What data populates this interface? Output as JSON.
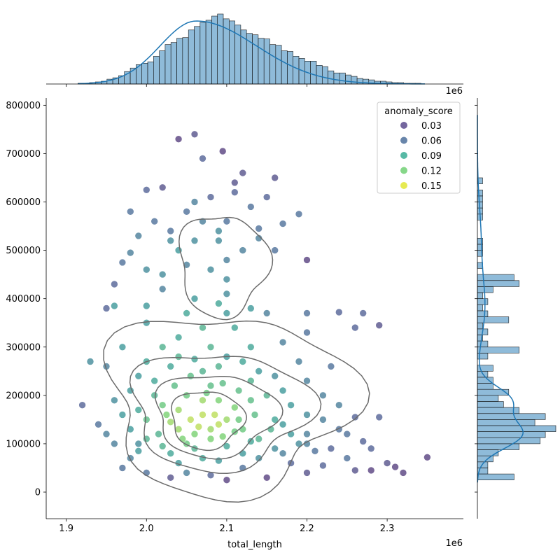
{
  "chart_data": {
    "type": "scatter",
    "subtype": "jointplot",
    "xlabel": "total_length",
    "ylabel": "",
    "x_offset_label": "1e6",
    "top_hist_offset_label": "1e6",
    "xlim": [
      1.875,
      2.395
    ],
    "ylim": [
      -55000,
      815000
    ],
    "x_ticks": [
      1.9,
      2.0,
      2.1,
      2.2,
      2.3
    ],
    "x_tick_labels": [
      "1.9",
      "2.0",
      "2.1",
      "2.2",
      "2.3"
    ],
    "y_ticks": [
      0,
      100000,
      200000,
      300000,
      400000,
      500000,
      600000,
      700000,
      800000
    ],
    "y_tick_labels": [
      "0",
      "100000",
      "200000",
      "300000",
      "400000",
      "500000",
      "600000",
      "700000",
      "800000"
    ],
    "legend": {
      "title": "anomaly_score",
      "position": "top-right",
      "entries": [
        {
          "label": "0.03",
          "color": "#46337e"
        },
        {
          "label": "0.06",
          "color": "#365c8d"
        },
        {
          "label": "0.09",
          "color": "#1fa187"
        },
        {
          "label": "0.12",
          "color": "#5ec962"
        },
        {
          "label": "0.15",
          "color": "#dde318"
        }
      ]
    },
    "colormap": [
      "#440154",
      "#3b528b",
      "#21918c",
      "#5ec962",
      "#fde725"
    ],
    "score_range": [
      0.0,
      0.17
    ],
    "kde_color": "#1f77b4",
    "hist_color": "#1f77b4",
    "contour_color": "#6b6b6b",
    "top_marginal_hist": {
      "bin_start": 1.9,
      "bin_width": 0.00725,
      "counts": [
        0,
        0,
        1,
        1,
        2,
        3,
        4,
        7,
        9,
        12,
        18,
        23,
        28,
        30,
        32,
        40,
        48,
        57,
        60,
        66,
        67,
        78,
        83,
        89,
        92,
        98,
        101,
        94,
        91,
        85,
        78,
        73,
        71,
        66,
        65,
        57,
        56,
        48,
        47,
        40,
        37,
        33,
        33,
        27,
        25,
        19,
        16,
        16,
        13,
        11,
        8,
        7,
        6,
        4,
        4,
        3,
        2,
        2,
        1,
        1,
        1,
        0,
        0,
        0,
        0
      ],
      "kde_peak_x": 2.062
    },
    "right_marginal_hist": {
      "bins_y_start": 25000,
      "bin_height": 12500,
      "counts": [
        7,
        2,
        2,
        3,
        4,
        8,
        12,
        13,
        15,
        11,
        13,
        8,
        5,
        4,
        6,
        3,
        3,
        2,
        3,
        0,
        2,
        8,
        2,
        1,
        2,
        1,
        6,
        2,
        1,
        2,
        1,
        3,
        8,
        7,
        0,
        1,
        0,
        1,
        1,
        1,
        0,
        0,
        0,
        1,
        1,
        1,
        1,
        1,
        0,
        1
      ],
      "kde_peaks": [
        120000,
        190000
      ]
    },
    "scatter_points": [
      [
        2.055,
        150000,
        0.15
      ],
      [
        2.07,
        160000,
        0.15
      ],
      [
        2.09,
        140000,
        0.15
      ],
      [
        2.04,
        170000,
        0.14
      ],
      [
        2.08,
        130000,
        0.14
      ],
      [
        2.11,
        175000,
        0.13
      ],
      [
        2.03,
        145000,
        0.14
      ],
      [
        2.06,
        120000,
        0.13
      ],
      [
        2.1,
        150000,
        0.14
      ],
      [
        2.12,
        130000,
        0.12
      ],
      [
        2.05,
        200000,
        0.12
      ],
      [
        2.02,
        180000,
        0.12
      ],
      [
        2.13,
        190000,
        0.11
      ],
      [
        2.0,
        150000,
        0.11
      ],
      [
        2.08,
        220000,
        0.11
      ],
      [
        2.015,
        120000,
        0.1
      ],
      [
        2.14,
        110000,
        0.1
      ],
      [
        2.16,
        150000,
        0.09
      ],
      [
        1.99,
        170000,
        0.09
      ],
      [
        2.07,
        250000,
        0.1
      ],
      [
        2.03,
        260000,
        0.09
      ],
      [
        2.1,
        280000,
        0.08
      ],
      [
        2.18,
        120000,
        0.08
      ],
      [
        1.98,
        130000,
        0.08
      ],
      [
        2.2,
        100000,
        0.06
      ],
      [
        2.22,
        150000,
        0.06
      ],
      [
        2.25,
        120000,
        0.05
      ],
      [
        2.28,
        90000,
        0.04
      ],
      [
        2.3,
        60000,
        0.03
      ],
      [
        2.35,
        72000,
        0.02
      ],
      [
        2.32,
        40000,
        0.02
      ],
      [
        1.97,
        50000,
        0.05
      ],
      [
        2.05,
        40000,
        0.06
      ],
      [
        2.12,
        50000,
        0.05
      ],
      [
        2.18,
        60000,
        0.04
      ],
      [
        2.25,
        70000,
        0.05
      ],
      [
        1.96,
        100000,
        0.06
      ],
      [
        1.94,
        140000,
        0.05
      ],
      [
        1.92,
        180000,
        0.04
      ],
      [
        2.06,
        740000,
        0.03
      ],
      [
        2.04,
        730000,
        0.02
      ],
      [
        2.095,
        705000,
        0.02
      ],
      [
        2.07,
        690000,
        0.04
      ],
      [
        2.12,
        660000,
        0.03
      ],
      [
        2.16,
        650000,
        0.03
      ],
      [
        2.02,
        630000,
        0.03
      ],
      [
        2.0,
        625000,
        0.04
      ],
      [
        1.98,
        580000,
        0.05
      ],
      [
        2.03,
        540000,
        0.05
      ],
      [
        2.09,
        520000,
        0.07
      ],
      [
        2.14,
        525000,
        0.06
      ],
      [
        2.2,
        480000,
        0.02
      ],
      [
        2.16,
        500000,
        0.05
      ],
      [
        2.04,
        500000,
        0.08
      ],
      [
        2.08,
        460000,
        0.07
      ],
      [
        2.1,
        440000,
        0.07
      ],
      [
        2.02,
        420000,
        0.06
      ],
      [
        1.97,
        475000,
        0.05
      ],
      [
        1.96,
        430000,
        0.04
      ],
      [
        1.95,
        380000,
        0.04
      ],
      [
        1.96,
        385000,
        0.08
      ],
      [
        2.0,
        385000,
        0.08
      ],
      [
        2.24,
        372000,
        0.04
      ],
      [
        2.27,
        370000,
        0.04
      ],
      [
        2.29,
        345000,
        0.03
      ],
      [
        2.26,
        340000,
        0.04
      ],
      [
        2.2,
        370000,
        0.05
      ],
      [
        2.15,
        370000,
        0.06
      ],
      [
        2.1,
        370000,
        0.08
      ],
      [
        2.05,
        370000,
        0.09
      ],
      [
        2.0,
        350000,
        0.08
      ],
      [
        2.2,
        330000,
        0.05
      ],
      [
        2.17,
        310000,
        0.06
      ],
      [
        2.23,
        260000,
        0.05
      ],
      [
        2.19,
        270000,
        0.06
      ],
      [
        1.95,
        260000,
        0.06
      ],
      [
        1.93,
        270000,
        0.07
      ],
      [
        1.97,
        300000,
        0.08
      ],
      [
        2.02,
        300000,
        0.1
      ],
      [
        2.08,
        300000,
        0.1
      ],
      [
        2.13,
        300000,
        0.09
      ],
      [
        1.96,
        190000,
        0.07
      ],
      [
        1.99,
        100000,
        0.07
      ],
      [
        2.02,
        95000,
        0.1
      ],
      [
        2.06,
        90000,
        0.1
      ],
      [
        2.1,
        95000,
        0.09
      ],
      [
        2.16,
        90000,
        0.07
      ],
      [
        2.2,
        120000,
        0.06
      ],
      [
        2.23,
        90000,
        0.04
      ],
      [
        2.24,
        130000,
        0.05
      ],
      [
        2.26,
        155000,
        0.04
      ],
      [
        2.27,
        105000,
        0.04
      ],
      [
        2.29,
        155000,
        0.04
      ],
      [
        2.26,
        45000,
        0.03
      ],
      [
        2.31,
        52000,
        0.02
      ],
      [
        2.28,
        45000,
        0.02
      ],
      [
        2.0,
        40000,
        0.05
      ],
      [
        2.03,
        30000,
        0.03
      ],
      [
        2.08,
        35000,
        0.04
      ],
      [
        2.1,
        25000,
        0.02
      ],
      [
        2.15,
        30000,
        0.02
      ],
      [
        2.2,
        40000,
        0.03
      ],
      [
        2.22,
        55000,
        0.04
      ],
      [
        1.98,
        70000,
        0.06
      ],
      [
        2.04,
        60000,
        0.08
      ],
      [
        2.09,
        65000,
        0.08
      ],
      [
        2.14,
        70000,
        0.07
      ],
      [
        2.17,
        80000,
        0.06
      ],
      [
        2.07,
        190000,
        0.14
      ],
      [
        2.09,
        190000,
        0.13
      ],
      [
        2.04,
        130000,
        0.14
      ],
      [
        2.065,
        135000,
        0.15
      ],
      [
        2.085,
        160000,
        0.15
      ],
      [
        2.025,
        160000,
        0.13
      ],
      [
        2.045,
        110000,
        0.13
      ],
      [
        2.095,
        115000,
        0.13
      ],
      [
        2.115,
        150000,
        0.12
      ],
      [
        2.135,
        160000,
        0.11
      ],
      [
        2.155,
        130000,
        0.1
      ],
      [
        2.035,
        220000,
        0.11
      ],
      [
        2.055,
        240000,
        0.11
      ],
      [
        2.075,
        205000,
        0.12
      ],
      [
        2.095,
        225000,
        0.11
      ],
      [
        2.115,
        210000,
        0.11
      ],
      [
        2.13,
        230000,
        0.1
      ],
      [
        2.15,
        200000,
        0.1
      ],
      [
        2.17,
        210000,
        0.08
      ],
      [
        2.01,
        230000,
        0.09
      ],
      [
        1.99,
        240000,
        0.08
      ],
      [
        2.01,
        200000,
        0.1
      ],
      [
        2.06,
        275000,
        0.09
      ],
      [
        2.12,
        270000,
        0.09
      ],
      [
        2.04,
        320000,
        0.09
      ],
      [
        2.07,
        340000,
        0.1
      ],
      [
        2.11,
        340000,
        0.09
      ],
      [
        2.06,
        400000,
        0.08
      ],
      [
        2.09,
        390000,
        0.09
      ],
      [
        2.13,
        380000,
        0.08
      ],
      [
        2.1,
        410000,
        0.07
      ],
      [
        2.02,
        450000,
        0.07
      ],
      [
        2.05,
        470000,
        0.06
      ],
      [
        2.1,
        480000,
        0.06
      ],
      [
        2.12,
        500000,
        0.06
      ],
      [
        2.06,
        520000,
        0.07
      ],
      [
        2.03,
        520000,
        0.07
      ],
      [
        2.07,
        560000,
        0.06
      ],
      [
        2.1,
        560000,
        0.05
      ],
      [
        2.05,
        580000,
        0.05
      ],
      [
        2.13,
        590000,
        0.05
      ],
      [
        2.08,
        610000,
        0.04
      ],
      [
        2.15,
        610000,
        0.04
      ],
      [
        2.11,
        640000,
        0.03
      ],
      [
        2.19,
        575000,
        0.05
      ],
      [
        2.17,
        555000,
        0.05
      ],
      [
        2.01,
        560000,
        0.05
      ],
      [
        1.99,
        530000,
        0.06
      ],
      [
        1.98,
        495000,
        0.06
      ],
      [
        2.0,
        460000,
        0.07
      ],
      [
        2.11,
        620000,
        0.04
      ],
      [
        2.06,
        600000,
        0.06
      ],
      [
        2.09,
        540000,
        0.07
      ],
      [
        2.14,
        545000,
        0.05
      ],
      [
        2.0,
        110000,
        0.1
      ],
      [
        2.13,
        105000,
        0.09
      ],
      [
        2.19,
        100000,
        0.07
      ],
      [
        2.21,
        85000,
        0.05
      ],
      [
        2.17,
        140000,
        0.08
      ],
      [
        2.2,
        160000,
        0.07
      ],
      [
        2.22,
        200000,
        0.06
      ],
      [
        2.24,
        180000,
        0.06
      ],
      [
        1.97,
        160000,
        0.08
      ],
      [
        1.95,
        120000,
        0.06
      ],
      [
        1.98,
        210000,
        0.08
      ],
      [
        2.0,
        270000,
        0.09
      ],
      [
        2.04,
        280000,
        0.1
      ],
      [
        2.09,
        260000,
        0.1
      ],
      [
        2.14,
        250000,
        0.08
      ],
      [
        2.16,
        240000,
        0.07
      ],
      [
        2.2,
        230000,
        0.06
      ],
      [
        2.18,
        180000,
        0.08
      ],
      [
        2.12,
        80000,
        0.08
      ],
      [
        2.07,
        70000,
        0.09
      ],
      [
        2.03,
        80000,
        0.09
      ],
      [
        1.99,
        85000,
        0.08
      ],
      [
        2.05,
        100000,
        0.12
      ],
      [
        2.08,
        110000,
        0.13
      ],
      [
        2.11,
        125000,
        0.12
      ]
    ]
  }
}
